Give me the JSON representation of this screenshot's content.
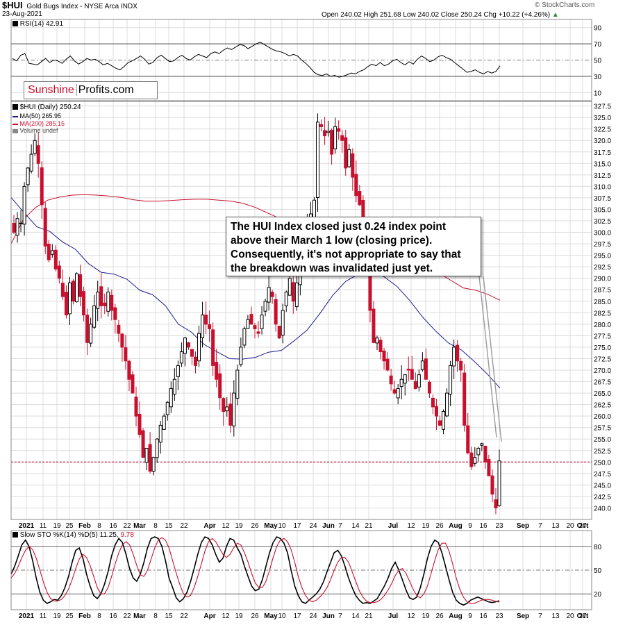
{
  "header": {
    "symbol": "$HUI",
    "name": "Gold Bugs Index - NYSE Arca INDX",
    "date": "23-Aug-2021",
    "watermark": "© StockCharts.com",
    "ohlc": "Open 240.02  High 251.68  Low 240.02  Close 250.24  Chg +10.22 (+4.26%)",
    "chg_arrow": "▲"
  },
  "logo": {
    "part1": "Sunshine",
    "part2": "Profits.com"
  },
  "annotation": "The HUI Index closed just 0.24 index point above their March 1 low (closing price). Consequently, it's not appropriate to say that the breakdown was invalidated just yet.",
  "colors": {
    "up": "#000000",
    "down": "#c8102e",
    "ma50": "#1a1a8c",
    "ma200": "#c8102e",
    "support": "#c8102e",
    "grid": "#dcdcdc",
    "stoK": "#000000",
    "stoD": "#c8102e"
  },
  "chart_data": [
    {
      "type": "line",
      "panel": "rsi",
      "legend": "RSI(14) 42.91",
      "yticks": [
        10,
        30,
        50,
        70,
        90
      ],
      "ylim": [
        0,
        100
      ],
      "levels": [
        30,
        70
      ],
      "midline": 50,
      "series": [
        {
          "name": "RSI(14)",
          "values": [
            52,
            49,
            56,
            58,
            46,
            45,
            44,
            48,
            52,
            47,
            50,
            49,
            46,
            51,
            55,
            49,
            45,
            48,
            52,
            50,
            51,
            48,
            44,
            46,
            43,
            40,
            38,
            42,
            47,
            49,
            52,
            55,
            51,
            45,
            47,
            53,
            56,
            52,
            48,
            49,
            53,
            56,
            52,
            50,
            54,
            57,
            55,
            53,
            58,
            60,
            58,
            62,
            65,
            63,
            66,
            69,
            68,
            64,
            67,
            70,
            72,
            69,
            66,
            63,
            61,
            60,
            58,
            55,
            57,
            55,
            50,
            46,
            41,
            35,
            32,
            31,
            33,
            30,
            31,
            29,
            30,
            32,
            34,
            33,
            36,
            38,
            42,
            45,
            43,
            47,
            43,
            45,
            49,
            51,
            47,
            44,
            48,
            45,
            51,
            55,
            52,
            48,
            50,
            54,
            56,
            53,
            51,
            47,
            43,
            39,
            35,
            36,
            38,
            35,
            33,
            36,
            34,
            36,
            42.91
          ]
        }
      ]
    },
    {
      "type": "candlestick",
      "panel": "price",
      "legend": [
        "$HUI (Daily) 250.24",
        "MA(50) 265.95",
        "MA(200) 285.15",
        "Volume undef"
      ],
      "ylim": [
        237.5,
        328.5
      ],
      "yticks": [
        240.0,
        242.5,
        245.0,
        247.5,
        250.0,
        252.5,
        255.0,
        257.5,
        260.0,
        262.5,
        265.0,
        267.5,
        270.0,
        272.5,
        275.0,
        277.5,
        280.0,
        282.5,
        285.0,
        287.5,
        290.0,
        292.5,
        295.0,
        297.5,
        300.0,
        302.5,
        305.0,
        307.5,
        310.0,
        312.5,
        315.0,
        317.5,
        320.0,
        322.5,
        325.0,
        327.5
      ],
      "support_level": 250.0,
      "xlabels": [
        "2021",
        "11",
        "19",
        "25",
        "Feb",
        "8",
        "16",
        "22",
        "Mar",
        "8",
        "15",
        "22",
        "Apr",
        "12",
        "19",
        "26",
        "May",
        "10",
        "17",
        "24",
        "Jun",
        "7",
        "14",
        "21",
        "Jul",
        "12",
        "19",
        "26",
        "Aug",
        "9",
        "16",
        "23",
        "Sep",
        "7",
        "13",
        "20",
        "27",
        "Oct"
      ],
      "closes": [
        300,
        303,
        302,
        310,
        314,
        317,
        320,
        315,
        306,
        297,
        294,
        296,
        292,
        290,
        286,
        282,
        289,
        285,
        291,
        286,
        282,
        276,
        280,
        284,
        287,
        284,
        284,
        287,
        283,
        281,
        278,
        275,
        272,
        268,
        265,
        260,
        256,
        251,
        253,
        248,
        251,
        255,
        258,
        260,
        263,
        266,
        268,
        271,
        274,
        277,
        275,
        273,
        271,
        278,
        282,
        280,
        279,
        271,
        268,
        264,
        261,
        262,
        258,
        265,
        270,
        275,
        279,
        281,
        280,
        279,
        278,
        282,
        285,
        288,
        286,
        280,
        277,
        283,
        287,
        290,
        285,
        289,
        295,
        299,
        301,
        304,
        307,
        324,
        323,
        321,
        322,
        317,
        323,
        322,
        320,
        314,
        318,
        312,
        308,
        306,
        300,
        299,
        283,
        276,
        277,
        274,
        272,
        270,
        267,
        265,
        266,
        268,
        269,
        270,
        268,
        266,
        269,
        272,
        268,
        265,
        262,
        260,
        258,
        261,
        265,
        271,
        275,
        272,
        270,
        258,
        252,
        249,
        251,
        253,
        254,
        250,
        247,
        243,
        240,
        250.24
      ],
      "ma50": [
        307.6,
        304.3,
        301.2,
        300.2,
        297.9,
        296.3,
        293.2,
        291.3,
        290.9,
        289.8,
        287.4,
        286.4,
        284.0,
        280.0,
        278.3,
        275.6,
        274.0,
        272.5,
        272.4,
        272.8,
        273.9,
        274.3,
        276.4,
        278.7,
        282.3,
        286.3,
        289.3,
        290.9,
        291.5,
        290.3,
        288.2,
        285.1,
        281.5,
        278.5,
        275.9,
        274.4,
        271.9,
        269.2,
        266.1
      ],
      "ma200": [
        297.5,
        302.8,
        305.4,
        307.0,
        307.7,
        308.1,
        308.2,
        308.1,
        307.9,
        307.6,
        307.1,
        306.8,
        306.8,
        306.9,
        307.1,
        307.2,
        307.2,
        307.0,
        306.8,
        306.3,
        305.4,
        304.2,
        303.0,
        302.3,
        301.4,
        300.3,
        299.7,
        299.7,
        299.4,
        298.8,
        298.3,
        297.5,
        296.2,
        295.5,
        293.7,
        291.1,
        289.5,
        287.9,
        287.4,
        286.5,
        285.2
      ]
    },
    {
      "type": "line",
      "panel": "stochastic",
      "legend_prefix": "Slow STO %K(14) %D(5) 11.25,",
      "legend_d": "9.78",
      "yticks": [
        20,
        50,
        80
      ],
      "ylim": [
        0,
        100
      ],
      "series": [
        {
          "name": "%K(14)",
          "values": [
            45,
            55,
            68,
            82,
            88,
            80,
            62,
            40,
            22,
            12,
            8,
            10,
            13,
            12,
            18,
            28,
            42,
            60,
            75,
            78,
            65,
            45,
            30,
            18,
            14,
            20,
            32,
            48,
            68,
            82,
            90,
            85,
            70,
            52,
            40,
            36,
            45,
            60,
            78,
            90,
            92,
            90,
            80,
            62,
            40,
            28,
            15,
            10,
            14,
            22,
            36,
            52,
            70,
            85,
            92,
            90,
            82,
            70,
            60,
            65,
            80,
            90,
            88,
            78,
            70,
            55,
            42,
            30,
            24,
            26,
            38,
            55,
            72,
            85,
            92,
            90,
            84,
            72,
            50,
            30,
            18,
            10,
            8,
            12,
            16,
            20,
            26,
            35,
            48,
            60,
            72,
            75,
            68,
            55,
            40,
            28,
            18,
            12,
            8,
            9,
            8,
            11,
            14,
            22,
            30,
            40,
            52,
            60,
            50,
            38,
            25,
            15,
            13,
            16,
            28,
            45,
            65,
            80,
            88,
            85,
            72,
            55,
            38,
            22,
            12,
            8,
            6,
            8,
            12,
            14,
            16,
            14,
            12,
            10,
            9,
            10,
            11.25
          ]
        },
        {
          "name": "%D(5)",
          "values": [
            40,
            46,
            55,
            66,
            75,
            80,
            76,
            65,
            50,
            35,
            22,
            14,
            11,
            11,
            13,
            18,
            26,
            38,
            52,
            64,
            70,
            66,
            56,
            42,
            28,
            20,
            20,
            28,
            42,
            58,
            72,
            82,
            86,
            82,
            70,
            56,
            44,
            42,
            50,
            64,
            78,
            88,
            91,
            88,
            78,
            62,
            46,
            32,
            20,
            16,
            18,
            28,
            42,
            58,
            74,
            86,
            90,
            86,
            78,
            70,
            66,
            70,
            78,
            84,
            82,
            72,
            60,
            46,
            34,
            28,
            28,
            36,
            50,
            66,
            80,
            88,
            90,
            86,
            76,
            60,
            42,
            28,
            18,
            12,
            10,
            12,
            16,
            21,
            28,
            38,
            50,
            60,
            66,
            66,
            60,
            48,
            36,
            24,
            16,
            11,
            9,
            9,
            10,
            13,
            18,
            25,
            33,
            43,
            50,
            52,
            46,
            36,
            26,
            18,
            15,
            20,
            30,
            46,
            62,
            76,
            84,
            84,
            74,
            58,
            40,
            26,
            16,
            10,
            8,
            8,
            10,
            12,
            13,
            13,
            12,
            10.5,
            9.78
          ]
        }
      ]
    }
  ]
}
